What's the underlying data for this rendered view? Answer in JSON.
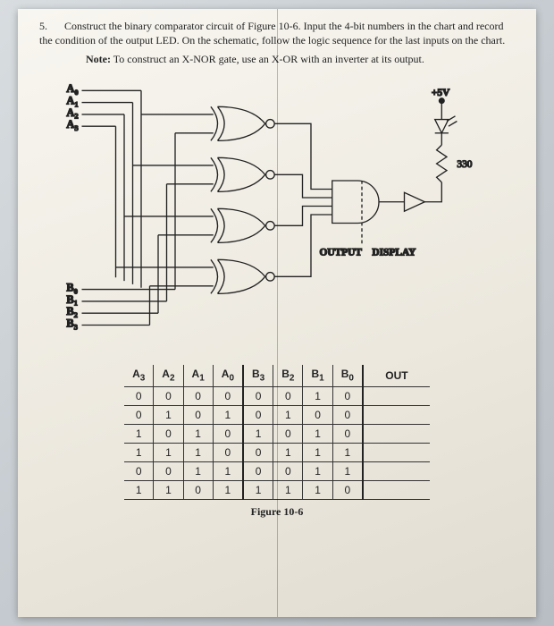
{
  "problem": {
    "number": "5.",
    "text": "Construct the binary comparator circuit of Figure 10-6. Input the 4-bit numbers in the chart and record the condition of the output LED. On the schematic, follow the logic sequence for the last inputs on the chart.",
    "note_prefix": "Note:",
    "note_text": "To construct an X-NOR gate, use an X-OR with an inverter at its output."
  },
  "circuit": {
    "inputs_a": [
      "A0",
      "A1",
      "A2",
      "A3"
    ],
    "inputs_b": [
      "B0",
      "B1",
      "B2",
      "B3"
    ],
    "vcc": "+5V",
    "resistor": "330",
    "output_label": "OUTPUT",
    "display_label": "DISPLAY",
    "line_color": "#222222",
    "fill_color": "#f5f3ea"
  },
  "table": {
    "headers_a": [
      "A3",
      "A2",
      "A1",
      "A0"
    ],
    "headers_b": [
      "B3",
      "B2",
      "B1",
      "B0"
    ],
    "header_out": "OUT",
    "rows": [
      {
        "a": [
          "0",
          "0",
          "0",
          "0"
        ],
        "b": [
          "0",
          "0",
          "1",
          "0"
        ],
        "out": ""
      },
      {
        "a": [
          "0",
          "1",
          "0",
          "1"
        ],
        "b": [
          "0",
          "1",
          "0",
          "0"
        ],
        "out": ""
      },
      {
        "a": [
          "1",
          "0",
          "1",
          "0"
        ],
        "b": [
          "1",
          "0",
          "1",
          "0"
        ],
        "out": ""
      },
      {
        "a": [
          "1",
          "1",
          "1",
          "0"
        ],
        "b": [
          "0",
          "1",
          "1",
          "1"
        ],
        "out": ""
      },
      {
        "a": [
          "0",
          "0",
          "1",
          "1"
        ],
        "b": [
          "0",
          "0",
          "1",
          "1"
        ],
        "out": ""
      },
      {
        "a": [
          "1",
          "1",
          "0",
          "1"
        ],
        "b": [
          "1",
          "1",
          "1",
          "0"
        ],
        "out": ""
      }
    ]
  },
  "caption": "Figure 10-6"
}
